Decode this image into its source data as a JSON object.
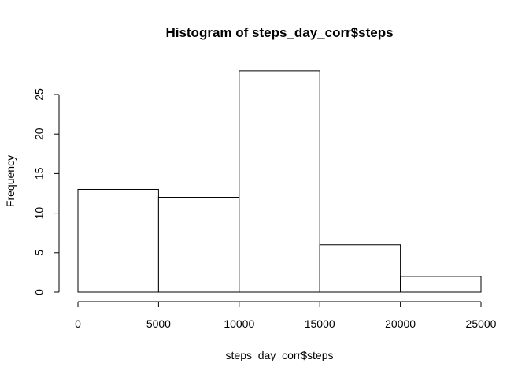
{
  "chart_data": {
    "type": "bar",
    "title": "Histogram of steps_day_corr$steps",
    "xlabel": "steps_day_corr$steps",
    "ylabel": "Frequency",
    "bins": [
      {
        "from": 0,
        "to": 5000,
        "count": 13
      },
      {
        "from": 5000,
        "to": 10000,
        "count": 12
      },
      {
        "from": 10000,
        "to": 15000,
        "count": 28
      },
      {
        "from": 15000,
        "to": 20000,
        "count": 6
      },
      {
        "from": 20000,
        "to": 25000,
        "count": 2
      }
    ],
    "xlim": [
      0,
      25000
    ],
    "ylim": [
      0,
      28
    ],
    "xticks": [
      "0",
      "5000",
      "10000",
      "15000",
      "20000",
      "25000"
    ],
    "yticks": [
      "0",
      "5",
      "10",
      "15",
      "20",
      "25"
    ],
    "grid": false
  }
}
